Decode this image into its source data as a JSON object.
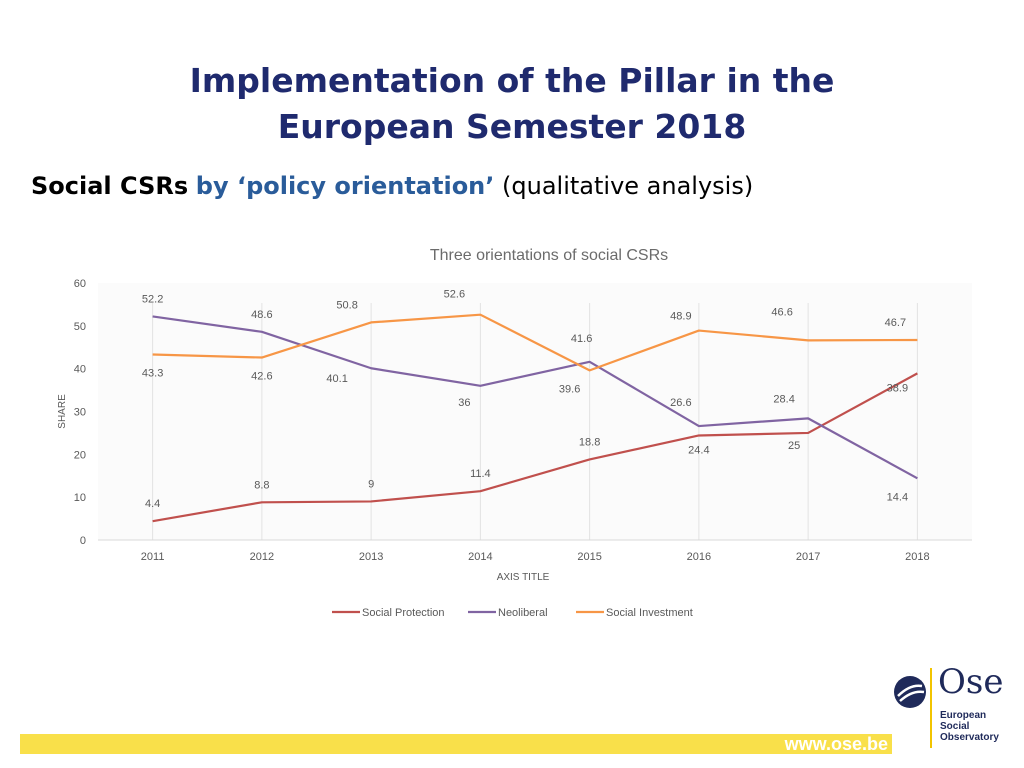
{
  "slide": {
    "title": "Implementation of the Pillar in the European Semester 2018",
    "subtitle_part1": "Social CSRs",
    "subtitle_part2": "by ‘policy orientation’",
    "subtitle_part3": "(qualitative analysis)"
  },
  "footer": {
    "url": "www.ose.be"
  },
  "logo": {
    "name": "Ose",
    "line1": "European",
    "line2": "Social",
    "line3": "Observatory"
  },
  "colors": {
    "social_protection": "#c0504d",
    "neoliberal": "#8064a2",
    "social_investment": "#f79646",
    "title": "#1f2a6e",
    "footer": "#f9e04a"
  },
  "chart_data": {
    "type": "line",
    "title": "Three orientations of social CSRs",
    "xlabel": "AXIS TITLE",
    "ylabel": "SHARE",
    "ylim": [
      0,
      60
    ],
    "yticks": [
      0,
      10,
      20,
      30,
      40,
      50,
      60
    ],
    "categories": [
      "2011",
      "2012",
      "2013",
      "2014",
      "2015",
      "2016",
      "2017",
      "2018"
    ],
    "legend_position": "bottom",
    "series": [
      {
        "name": "Social Protection",
        "color": "#c0504d",
        "values": [
          4.4,
          8.8,
          9,
          11.4,
          18.8,
          24.4,
          25,
          38.9
        ]
      },
      {
        "name": "Neoliberal",
        "color": "#8064a2",
        "values": [
          52.2,
          48.6,
          40.1,
          36,
          41.6,
          26.6,
          28.4,
          14.4
        ]
      },
      {
        "name": "Social Investment",
        "color": "#f79646",
        "values": [
          43.3,
          42.6,
          50.8,
          52.6,
          39.6,
          48.9,
          46.6,
          46.7
        ]
      }
    ]
  }
}
